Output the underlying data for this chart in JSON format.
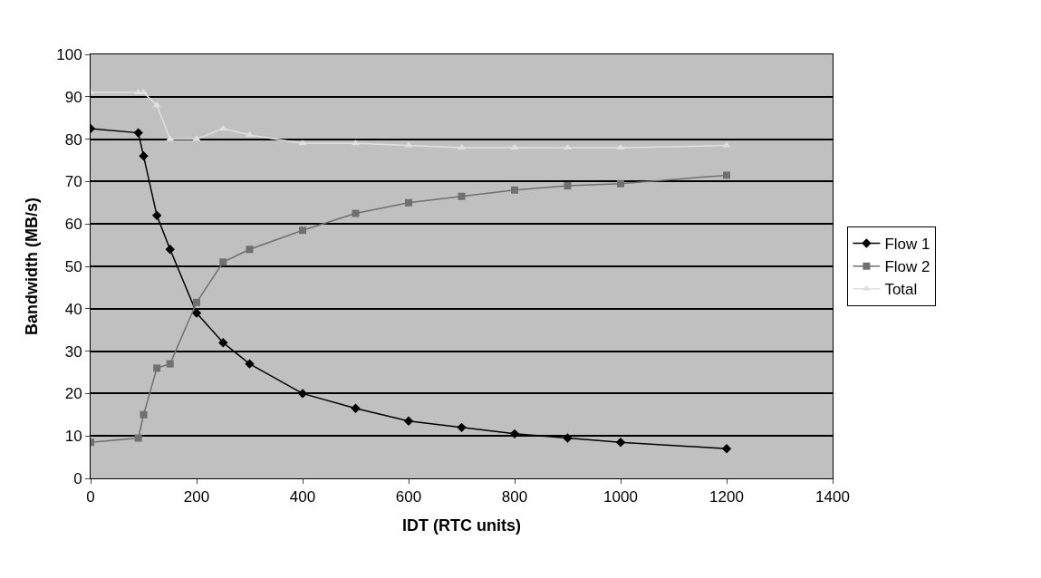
{
  "chart_data": {
    "type": "line",
    "xlabel": "IDT (RTC units)",
    "ylabel": "Bandwidth (MB/s)",
    "x": [
      0,
      90,
      100,
      125,
      150,
      200,
      250,
      300,
      400,
      500,
      600,
      700,
      800,
      900,
      1000,
      1200
    ],
    "series": [
      {
        "name": "Flow 1",
        "color": "#000000",
        "marker": "diamond",
        "values": [
          82.5,
          81.5,
          76,
          62,
          54,
          39,
          32,
          27,
          20,
          16.5,
          13.5,
          12,
          10.5,
          9.5,
          8.5,
          7
        ]
      },
      {
        "name": "Flow 2",
        "color": "#707070",
        "marker": "square",
        "values": [
          8.5,
          9.5,
          15,
          26,
          27,
          41.5,
          51,
          54,
          58.5,
          62.5,
          65,
          66.5,
          68,
          69,
          69.5,
          71.5
        ]
      },
      {
        "name": "Total",
        "color": "#e0e0e0",
        "marker": "triangle",
        "values": [
          91,
          91,
          91,
          88,
          80,
          80,
          82.5,
          81,
          79,
          79,
          78.5,
          78,
          78,
          78,
          78,
          78.5
        ]
      }
    ],
    "xlim": [
      0,
      1400
    ],
    "xticks": [
      0,
      200,
      400,
      600,
      800,
      1000,
      1200,
      1400
    ],
    "ylim": [
      0,
      100
    ],
    "yticks": [
      0,
      10,
      20,
      30,
      40,
      50,
      60,
      70,
      80,
      90,
      100
    ],
    "grid": "y",
    "legend": "right"
  }
}
